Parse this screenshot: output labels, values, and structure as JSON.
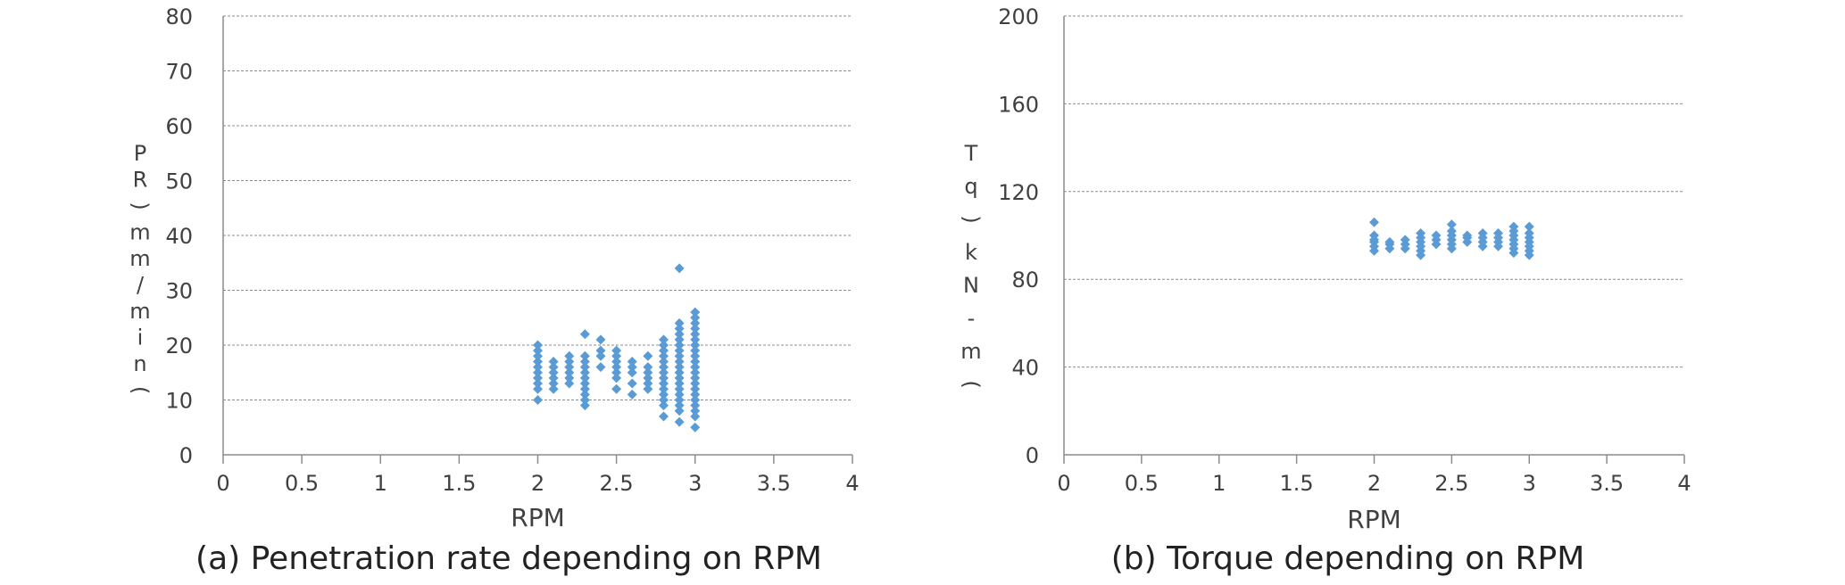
{
  "accent_color": "#5b9bd5",
  "chart_data": [
    {
      "type": "scatter",
      "title": "",
      "caption": "(a) Penetration rate depending on RPM",
      "xlabel": "RPM",
      "ylabel": "PR(mm/min)",
      "ylabel_chars": [
        "P",
        "R",
        ")",
        "m",
        "m",
        "/",
        "m",
        "i",
        "n",
        "("
      ],
      "xlim": [
        0,
        4
      ],
      "ylim": [
        0,
        80
      ],
      "xticks": [
        "0",
        "0.5",
        "1",
        "1.5",
        "2",
        "2.5",
        "3",
        "3.5",
        "4"
      ],
      "yticks": [
        "0",
        "10",
        "20",
        "30",
        "40",
        "50",
        "60",
        "70",
        "80"
      ],
      "grid": true,
      "legend": "none",
      "marker": "diamond",
      "color": "#5b9bd5",
      "points": [
        [
          2.0,
          10
        ],
        [
          2.0,
          12
        ],
        [
          2.0,
          13
        ],
        [
          2.0,
          14
        ],
        [
          2.0,
          15
        ],
        [
          2.0,
          16
        ],
        [
          2.0,
          17
        ],
        [
          2.0,
          18
        ],
        [
          2.0,
          19
        ],
        [
          2.0,
          20
        ],
        [
          2.1,
          12
        ],
        [
          2.1,
          13
        ],
        [
          2.1,
          14
        ],
        [
          2.1,
          15
        ],
        [
          2.1,
          16
        ],
        [
          2.1,
          17
        ],
        [
          2.2,
          13
        ],
        [
          2.2,
          14
        ],
        [
          2.2,
          15
        ],
        [
          2.2,
          16
        ],
        [
          2.2,
          17
        ],
        [
          2.2,
          18
        ],
        [
          2.3,
          9
        ],
        [
          2.3,
          10
        ],
        [
          2.3,
          11
        ],
        [
          2.3,
          12
        ],
        [
          2.3,
          13
        ],
        [
          2.3,
          14
        ],
        [
          2.3,
          15
        ],
        [
          2.3,
          16
        ],
        [
          2.3,
          17
        ],
        [
          2.3,
          18
        ],
        [
          2.3,
          22
        ],
        [
          2.4,
          16
        ],
        [
          2.4,
          18
        ],
        [
          2.4,
          19
        ],
        [
          2.4,
          21
        ],
        [
          2.5,
          12
        ],
        [
          2.5,
          14
        ],
        [
          2.5,
          15
        ],
        [
          2.5,
          16
        ],
        [
          2.5,
          17
        ],
        [
          2.5,
          18
        ],
        [
          2.5,
          19
        ],
        [
          2.6,
          11
        ],
        [
          2.6,
          13
        ],
        [
          2.6,
          15
        ],
        [
          2.6,
          16
        ],
        [
          2.6,
          17
        ],
        [
          2.7,
          12
        ],
        [
          2.7,
          13
        ],
        [
          2.7,
          14
        ],
        [
          2.7,
          15
        ],
        [
          2.7,
          16
        ],
        [
          2.7,
          18
        ],
        [
          2.8,
          7
        ],
        [
          2.8,
          9
        ],
        [
          2.8,
          10
        ],
        [
          2.8,
          11
        ],
        [
          2.8,
          12
        ],
        [
          2.8,
          13
        ],
        [
          2.8,
          14
        ],
        [
          2.8,
          15
        ],
        [
          2.8,
          16
        ],
        [
          2.8,
          17
        ],
        [
          2.8,
          18
        ],
        [
          2.8,
          19
        ],
        [
          2.8,
          20
        ],
        [
          2.8,
          21
        ],
        [
          2.9,
          6
        ],
        [
          2.9,
          8
        ],
        [
          2.9,
          9
        ],
        [
          2.9,
          10
        ],
        [
          2.9,
          11
        ],
        [
          2.9,
          12
        ],
        [
          2.9,
          13
        ],
        [
          2.9,
          14
        ],
        [
          2.9,
          15
        ],
        [
          2.9,
          16
        ],
        [
          2.9,
          17
        ],
        [
          2.9,
          18
        ],
        [
          2.9,
          19
        ],
        [
          2.9,
          20
        ],
        [
          2.9,
          21
        ],
        [
          2.9,
          22
        ],
        [
          2.9,
          23
        ],
        [
          2.9,
          24
        ],
        [
          2.9,
          34
        ],
        [
          3.0,
          5
        ],
        [
          3.0,
          7
        ],
        [
          3.0,
          8
        ],
        [
          3.0,
          9
        ],
        [
          3.0,
          10
        ],
        [
          3.0,
          11
        ],
        [
          3.0,
          12
        ],
        [
          3.0,
          13
        ],
        [
          3.0,
          14
        ],
        [
          3.0,
          15
        ],
        [
          3.0,
          16
        ],
        [
          3.0,
          17
        ],
        [
          3.0,
          18
        ],
        [
          3.0,
          19
        ],
        [
          3.0,
          20
        ],
        [
          3.0,
          21
        ],
        [
          3.0,
          22
        ],
        [
          3.0,
          23
        ],
        [
          3.0,
          24
        ],
        [
          3.0,
          25
        ],
        [
          3.0,
          26
        ]
      ]
    },
    {
      "type": "scatter",
      "title": "",
      "caption": "(b) Torque depending on RPM",
      "xlabel": "RPM",
      "ylabel": "Tq(kN-m)",
      "ylabel_chars": [
        "T",
        "q",
        ")",
        "k",
        "N",
        "-",
        "m",
        "("
      ],
      "xlim": [
        0,
        4
      ],
      "ylim": [
        0,
        200
      ],
      "xticks": [
        "0",
        "0.5",
        "1",
        "1.5",
        "2",
        "2.5",
        "3",
        "3.5",
        "4"
      ],
      "yticks": [
        "0",
        "40",
        "80",
        "120",
        "160",
        "200"
      ],
      "grid": true,
      "legend": "none",
      "marker": "diamond",
      "color": "#5b9bd5",
      "points": [
        [
          2.0,
          93
        ],
        [
          2.0,
          95
        ],
        [
          2.0,
          97
        ],
        [
          2.0,
          98
        ],
        [
          2.0,
          100
        ],
        [
          2.0,
          106
        ],
        [
          2.1,
          94
        ],
        [
          2.1,
          96
        ],
        [
          2.1,
          97
        ],
        [
          2.2,
          94
        ],
        [
          2.2,
          96
        ],
        [
          2.2,
          98
        ],
        [
          2.3,
          91
        ],
        [
          2.3,
          93
        ],
        [
          2.3,
          95
        ],
        [
          2.3,
          97
        ],
        [
          2.3,
          99
        ],
        [
          2.3,
          101
        ],
        [
          2.4,
          96
        ],
        [
          2.4,
          98
        ],
        [
          2.4,
          100
        ],
        [
          2.5,
          94
        ],
        [
          2.5,
          96
        ],
        [
          2.5,
          98
        ],
        [
          2.5,
          100
        ],
        [
          2.5,
          102
        ],
        [
          2.5,
          105
        ],
        [
          2.6,
          97
        ],
        [
          2.6,
          99
        ],
        [
          2.6,
          100
        ],
        [
          2.7,
          95
        ],
        [
          2.7,
          97
        ],
        [
          2.7,
          99
        ],
        [
          2.7,
          101
        ],
        [
          2.8,
          95
        ],
        [
          2.8,
          97
        ],
        [
          2.8,
          99
        ],
        [
          2.8,
          101
        ],
        [
          2.9,
          92
        ],
        [
          2.9,
          94
        ],
        [
          2.9,
          96
        ],
        [
          2.9,
          98
        ],
        [
          2.9,
          100
        ],
        [
          2.9,
          102
        ],
        [
          2.9,
          104
        ],
        [
          3.0,
          91
        ],
        [
          3.0,
          93
        ],
        [
          3.0,
          95
        ],
        [
          3.0,
          97
        ],
        [
          3.0,
          99
        ],
        [
          3.0,
          101
        ],
        [
          3.0,
          104
        ]
      ]
    }
  ]
}
